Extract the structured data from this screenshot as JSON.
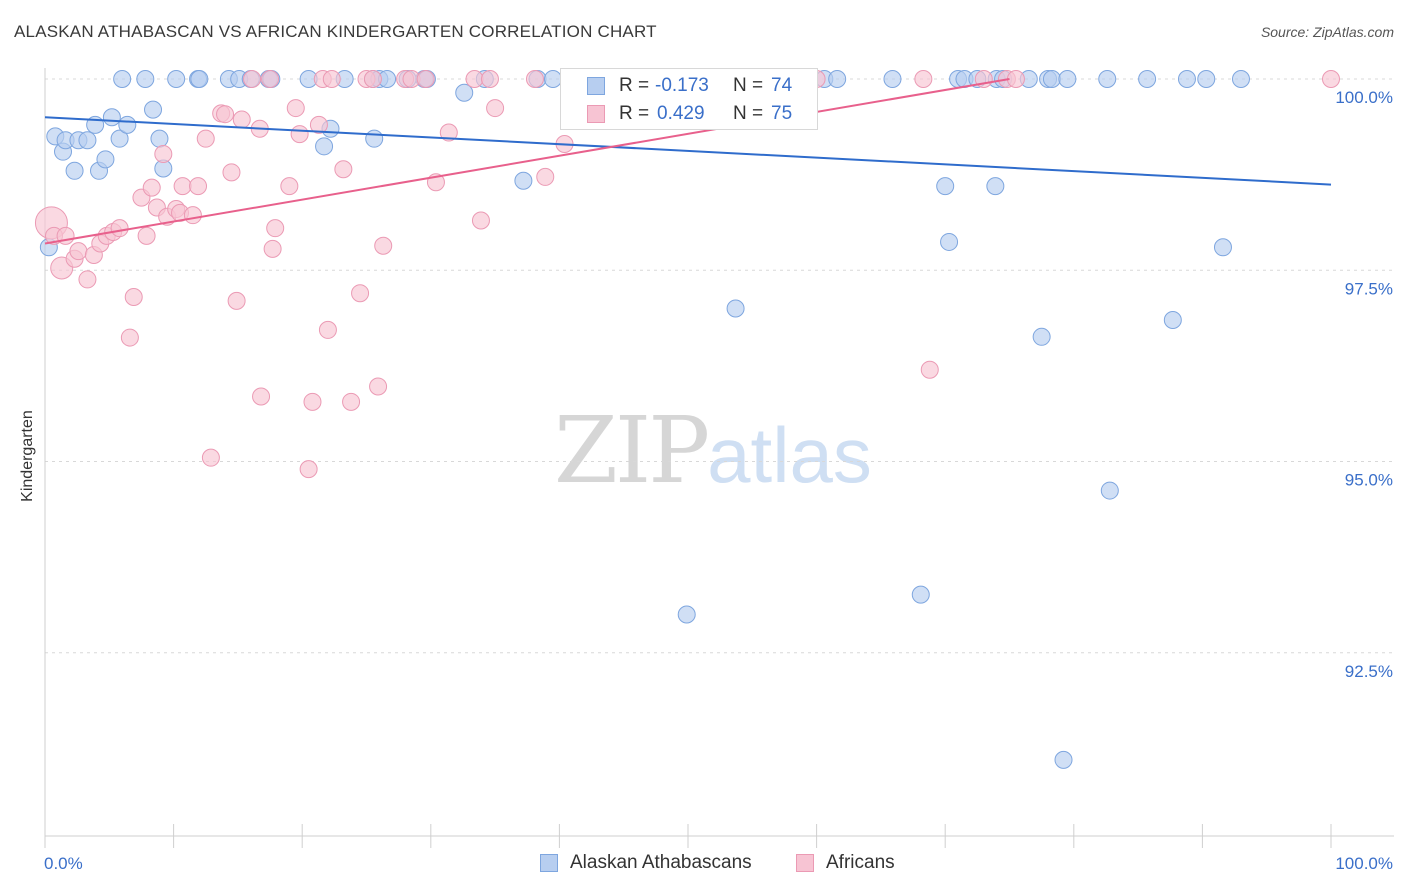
{
  "header": {
    "title": "ALASKAN ATHABASCAN VS AFRICAN KINDERGARTEN CORRELATION CHART",
    "source": "Source: ZipAtlas.com"
  },
  "watermark": {
    "zip": "ZIP",
    "atlas": "atlas"
  },
  "legend_top": {
    "rows": [
      {
        "r_label": "R =",
        "r_value": "-0.173",
        "n_label": "N =",
        "n_value": "74"
      },
      {
        "r_label": "R =",
        "r_value": "0.429",
        "n_label": "N =",
        "n_value": "75"
      }
    ]
  },
  "legend_bottom": {
    "items": [
      {
        "label": "Alaskan Athabascans"
      },
      {
        "label": "Africans"
      }
    ]
  },
  "colors": {
    "blue_fill": "#b7cef0",
    "blue_stroke": "#7ea6df",
    "blue_line": "#2f6ccc",
    "pink_fill": "#f7c4d3",
    "pink_stroke": "#eb9ab4",
    "pink_line": "#e8608c",
    "tick_label": "#3a6fc9",
    "grid": "#d8d8d8"
  },
  "chart_data": {
    "type": "scatter",
    "title": "ALASKAN ATHABASCAN VS AFRICAN KINDERGARTEN CORRELATION CHART",
    "xlabel": "",
    "ylabel": "Kindergarten",
    "xlim": [
      0,
      100
    ],
    "ylim": [
      90.0,
      100.5
    ],
    "x_tick_labels": [
      "0.0%",
      "100.0%"
    ],
    "y_ticks": [
      {
        "value": 100.0,
        "label": "100.0%"
      },
      {
        "value": 97.5,
        "label": "97.5%"
      },
      {
        "value": 95.0,
        "label": "95.0%"
      },
      {
        "value": 92.5,
        "label": "92.5%"
      }
    ],
    "grid": true,
    "legend_position": "bottom",
    "series": [
      {
        "name": "Alaskan Athabascans",
        "r": -0.173,
        "n": 74,
        "trend": {
          "x": [
            0,
            100
          ],
          "y": [
            99.5,
            98.62
          ]
        },
        "points": [
          [
            0.3,
            97.8
          ],
          [
            0.8,
            99.25
          ],
          [
            1.4,
            99.05
          ],
          [
            1.6,
            99.2
          ],
          [
            2.3,
            98.8
          ],
          [
            2.6,
            99.2
          ],
          [
            3.3,
            99.2
          ],
          [
            3.9,
            99.4
          ],
          [
            4.2,
            98.8
          ],
          [
            4.7,
            98.95
          ],
          [
            5.2,
            99.5
          ],
          [
            5.8,
            99.22
          ],
          [
            6.4,
            99.4
          ],
          [
            6.0,
            100.0
          ],
          [
            7.8,
            100.0
          ],
          [
            8.4,
            99.6
          ],
          [
            8.9,
            99.22
          ],
          [
            9.2,
            98.83
          ],
          [
            10.2,
            100.0
          ],
          [
            11.9,
            100.0
          ],
          [
            12.0,
            100.0
          ],
          [
            14.3,
            100.0
          ],
          [
            15.1,
            100.0
          ],
          [
            16.0,
            100.0
          ],
          [
            17.4,
            100.0
          ],
          [
            17.6,
            100.0
          ],
          [
            20.5,
            100.0
          ],
          [
            21.7,
            99.12
          ],
          [
            22.2,
            99.35
          ],
          [
            23.3,
            100.0
          ],
          [
            25.5,
            100.0
          ],
          [
            25.6,
            99.22
          ],
          [
            26.0,
            100.0
          ],
          [
            26.6,
            100.0
          ],
          [
            28.2,
            100.0
          ],
          [
            29.5,
            100.0
          ],
          [
            29.7,
            100.0
          ],
          [
            32.6,
            99.82
          ],
          [
            34.2,
            100.0
          ],
          [
            37.2,
            98.67
          ],
          [
            38.3,
            100.0
          ],
          [
            39.5,
            100.0
          ],
          [
            42.3,
            100.0
          ],
          [
            46.5,
            100.0
          ],
          [
            47.0,
            100.0
          ],
          [
            49.9,
            93.0
          ],
          [
            53.4,
            100.0
          ],
          [
            53.7,
            97.0
          ],
          [
            60.6,
            100.0
          ],
          [
            61.6,
            100.0
          ],
          [
            65.9,
            100.0
          ],
          [
            68.1,
            93.26
          ],
          [
            70.0,
            98.6
          ],
          [
            70.3,
            97.87
          ],
          [
            71.0,
            100.0
          ],
          [
            71.5,
            100.0
          ],
          [
            72.5,
            100.0
          ],
          [
            73.9,
            98.6
          ],
          [
            74.0,
            100.0
          ],
          [
            74.5,
            100.0
          ],
          [
            76.5,
            100.0
          ],
          [
            77.5,
            96.63
          ],
          [
            78.0,
            100.0
          ],
          [
            78.3,
            100.0
          ],
          [
            79.2,
            91.1
          ],
          [
            79.5,
            100.0
          ],
          [
            82.6,
            100.0
          ],
          [
            82.8,
            94.62
          ],
          [
            85.7,
            100.0
          ],
          [
            87.7,
            96.85
          ],
          [
            88.8,
            100.0
          ],
          [
            90.3,
            100.0
          ],
          [
            91.6,
            97.8
          ],
          [
            93.0,
            100.0
          ]
        ]
      },
      {
        "name": "Africans",
        "r": 0.429,
        "n": 75,
        "trend": {
          "x": [
            0,
            75
          ],
          "y": [
            97.85,
            100.0
          ]
        },
        "points": [
          [
            0.5,
            98.12
          ],
          [
            0.7,
            97.95
          ],
          [
            1.3,
            97.53
          ],
          [
            1.6,
            97.95
          ],
          [
            2.3,
            97.65
          ],
          [
            2.6,
            97.75
          ],
          [
            3.3,
            97.38
          ],
          [
            3.8,
            97.7
          ],
          [
            4.3,
            97.85
          ],
          [
            4.8,
            97.95
          ],
          [
            5.3,
            98.0
          ],
          [
            5.8,
            98.05
          ],
          [
            6.6,
            96.62
          ],
          [
            6.9,
            97.15
          ],
          [
            7.5,
            98.45
          ],
          [
            7.9,
            97.95
          ],
          [
            8.3,
            98.58
          ],
          [
            8.7,
            98.32
          ],
          [
            9.2,
            99.02
          ],
          [
            9.5,
            98.2
          ],
          [
            10.2,
            98.3
          ],
          [
            10.5,
            98.25
          ],
          [
            10.7,
            98.6
          ],
          [
            11.5,
            98.22
          ],
          [
            11.9,
            98.6
          ],
          [
            12.5,
            99.22
          ],
          [
            12.9,
            95.05
          ],
          [
            13.7,
            99.55
          ],
          [
            14.0,
            99.54
          ],
          [
            14.5,
            98.78
          ],
          [
            14.9,
            97.1
          ],
          [
            15.3,
            99.47
          ],
          [
            16.1,
            100.0
          ],
          [
            16.7,
            99.35
          ],
          [
            16.8,
            95.85
          ],
          [
            17.5,
            100.0
          ],
          [
            17.7,
            97.78
          ],
          [
            17.9,
            98.05
          ],
          [
            19.0,
            98.6
          ],
          [
            19.5,
            99.62
          ],
          [
            19.8,
            99.28
          ],
          [
            20.5,
            94.9
          ],
          [
            20.8,
            95.78
          ],
          [
            21.3,
            99.4
          ],
          [
            21.6,
            100.0
          ],
          [
            22.0,
            96.72
          ],
          [
            22.3,
            100.0
          ],
          [
            23.2,
            98.82
          ],
          [
            23.8,
            95.78
          ],
          [
            24.5,
            97.2
          ],
          [
            25.0,
            100.0
          ],
          [
            25.5,
            100.0
          ],
          [
            25.9,
            95.98
          ],
          [
            26.3,
            97.82
          ],
          [
            28.0,
            100.0
          ],
          [
            28.5,
            100.0
          ],
          [
            29.6,
            100.0
          ],
          [
            30.4,
            98.65
          ],
          [
            31.4,
            99.3
          ],
          [
            33.4,
            100.0
          ],
          [
            33.9,
            98.15
          ],
          [
            34.6,
            100.0
          ],
          [
            35.0,
            99.62
          ],
          [
            38.1,
            100.0
          ],
          [
            38.9,
            98.72
          ],
          [
            40.4,
            99.15
          ],
          [
            43.4,
            100.0
          ],
          [
            46.3,
            100.0
          ],
          [
            60.0,
            100.0
          ],
          [
            68.3,
            100.0
          ],
          [
            68.8,
            96.2
          ],
          [
            73.0,
            100.0
          ],
          [
            74.8,
            100.0
          ],
          [
            75.5,
            100.0
          ],
          [
            100.0,
            100.0
          ]
        ]
      }
    ]
  }
}
